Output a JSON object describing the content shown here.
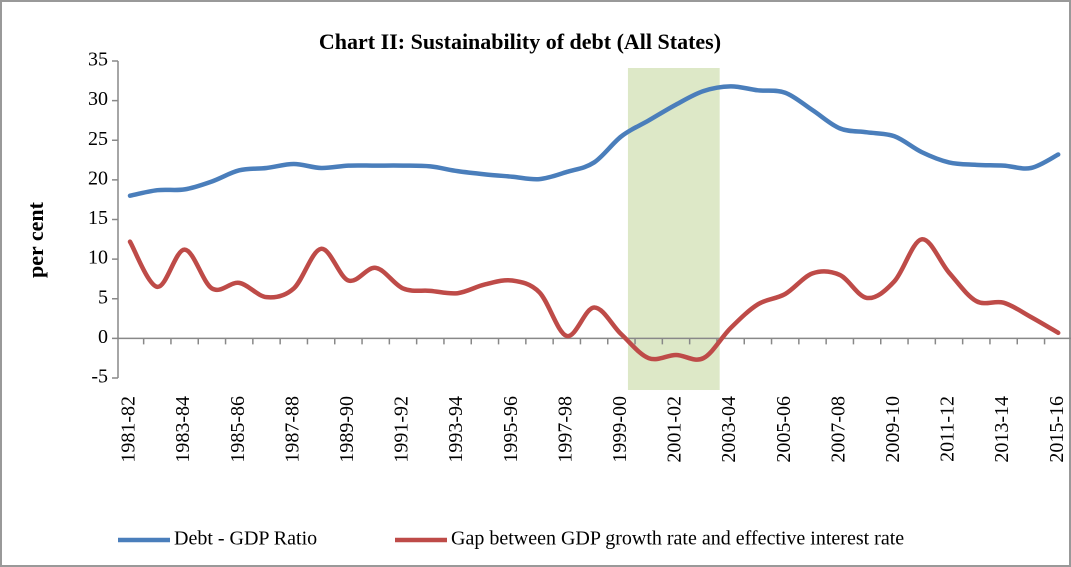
{
  "chart_data": {
    "type": "line",
    "title": "Chart II: Sustainability of debt (All States)",
    "y_label": "per cent",
    "categories": [
      "1981-82",
      null,
      "1983-84",
      null,
      "1985-86",
      null,
      "1987-88",
      null,
      "1989-90",
      null,
      "1991-92",
      null,
      "1993-94",
      null,
      "1995-96",
      null,
      "1997-98",
      null,
      "1999-00",
      null,
      "2001-02",
      null,
      "2003-04",
      null,
      "2005-06",
      null,
      "2007-08",
      null,
      "2009-10",
      null,
      "2011-12",
      null,
      "2013-14",
      null,
      "2015-16"
    ],
    "series": [
      {
        "name": "Debt - GDP Ratio",
        "color": "#4a7ebb",
        "values": [
          18,
          18.7,
          18.8,
          19.8,
          21.2,
          21.5,
          22,
          21.5,
          21.8,
          21.8,
          21.8,
          21.7,
          21.1,
          20.7,
          20.4,
          20.1,
          21,
          22.2,
          25.5,
          27.5,
          29.5,
          31.2,
          31.8,
          31.3,
          31,
          28.8,
          26.5,
          26,
          25.5,
          23.5,
          22.2,
          21.9,
          21.8,
          21.5,
          23.2
        ]
      },
      {
        "name": "Gap between GDP growth rate and effective interest rate",
        "color": "#be4b48",
        "values": [
          12.2,
          6.5,
          11.2,
          6.3,
          7,
          5.2,
          6.3,
          11.3,
          7.3,
          8.9,
          6.3,
          6,
          5.7,
          6.8,
          7.3,
          5.8,
          0.3,
          3.9,
          0.5,
          -2.5,
          -2.1,
          -2.5,
          1.3,
          4.3,
          5.6,
          8.2,
          8,
          5.1,
          7.2,
          12.5,
          8.3,
          4.7,
          4.5,
          2.7,
          0.7
        ]
      }
    ],
    "shaded_x": [
      18.24,
      21.6
    ],
    "shade_color": "#d7e4bd",
    "ylim": [
      -5,
      35
    ],
    "yticks": [
      -5,
      0,
      5,
      10,
      15,
      20,
      25,
      30,
      35
    ],
    "legend": "bottom",
    "grid": false
  }
}
